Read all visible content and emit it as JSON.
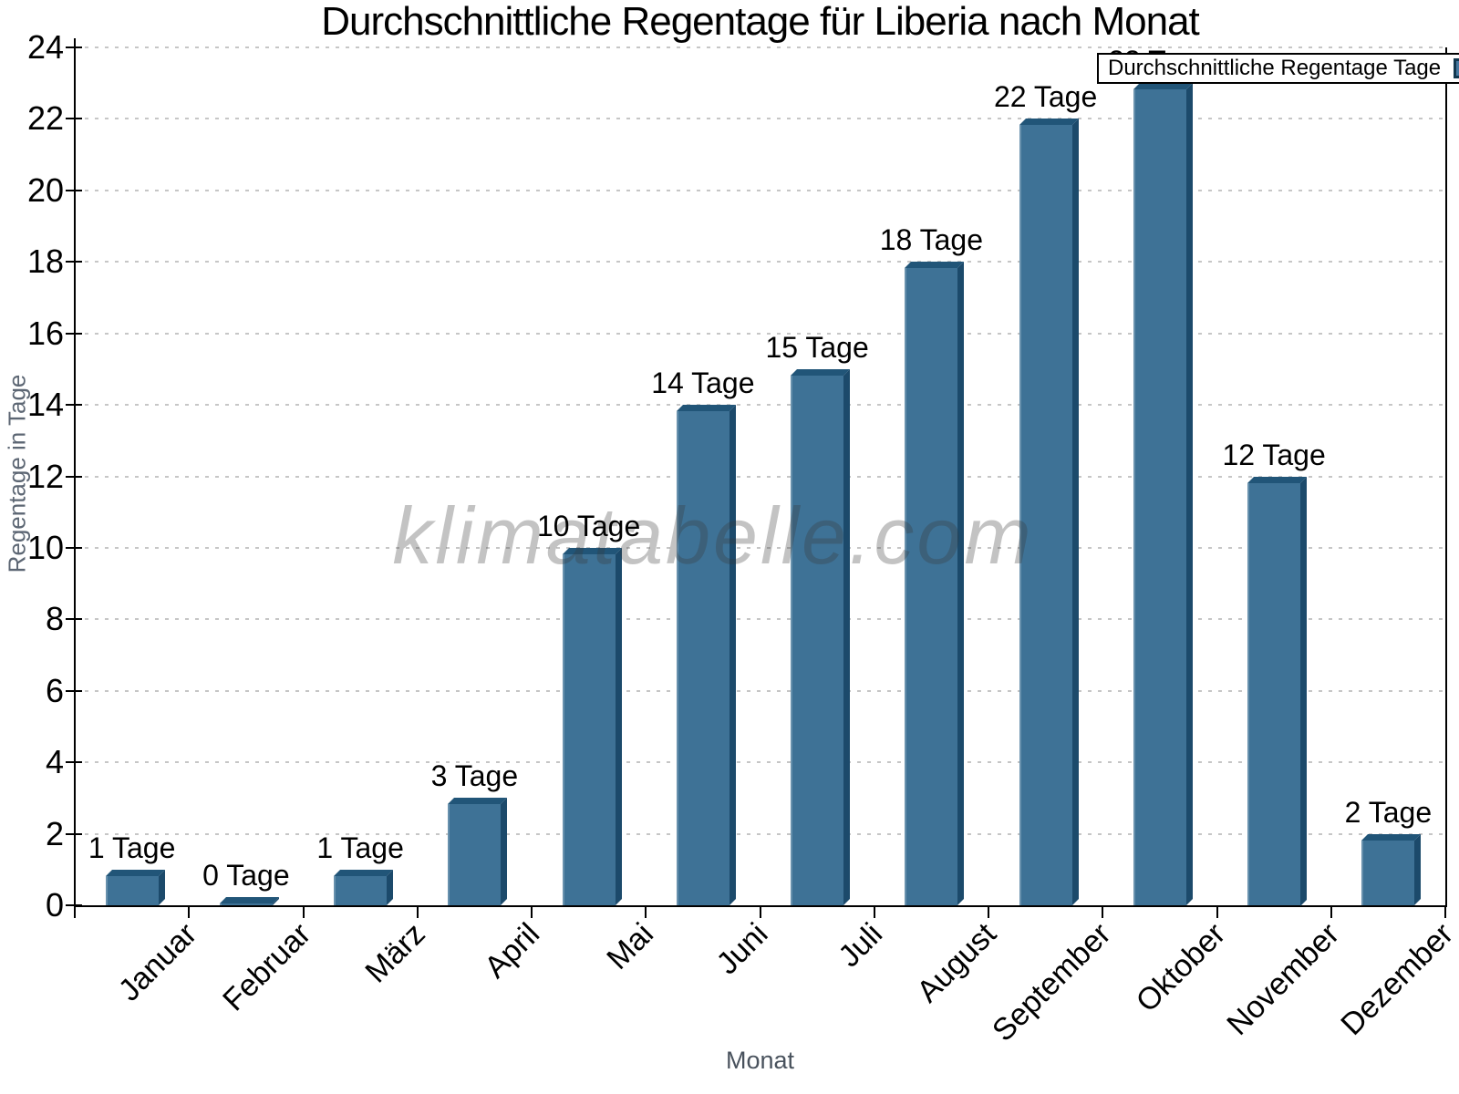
{
  "title": "Durchschnittliche Regentage für Liberia nach Monat",
  "legend": {
    "label": "Durchschnittliche Regentage Tage",
    "position": "top-right"
  },
  "watermark": "klimatabelle.com",
  "axes": {
    "x_label": "Monat",
    "y_label": "Regentage in Tage"
  },
  "chart_data": {
    "type": "bar",
    "title": "Durchschnittliche Regentage für Liberia nach Monat",
    "series_name": "Durchschnittliche Regentage Tage",
    "categories": [
      "Januar",
      "Februar",
      "März",
      "April",
      "Mai",
      "Juni",
      "Juli",
      "August",
      "September",
      "Oktober",
      "November",
      "Dezember"
    ],
    "values": [
      1,
      0,
      1,
      3,
      10,
      14,
      15,
      18,
      22,
      23,
      12,
      2
    ],
    "bar_labels": [
      "1 Tage",
      "0 Tage",
      "1 Tage",
      "3 Tage",
      "10 Tage",
      "14 Tage",
      "15 Tage",
      "18 Tage",
      "22 Tage",
      "23 Tage",
      "12 Tage",
      "2 Tage"
    ],
    "xlabel": "Monat",
    "ylabel": "Regentage in Tage",
    "ylim": [
      0,
      24
    ],
    "y_ticks": [
      0,
      2,
      4,
      6,
      8,
      10,
      12,
      14,
      16,
      18,
      20,
      22,
      24
    ],
    "grid": "horizontal-dotted",
    "legend_position": "top-right"
  },
  "colors": {
    "bar_front": "#3e7296",
    "bar_side": "#1c4a6b",
    "bar_top": "#215578",
    "legend_swatch": "#4678a0",
    "gridline": "#c6c6c6",
    "axis": "#000000",
    "axis_title_gray": "#5c6673",
    "watermark_gray": "#8a8a8a"
  }
}
